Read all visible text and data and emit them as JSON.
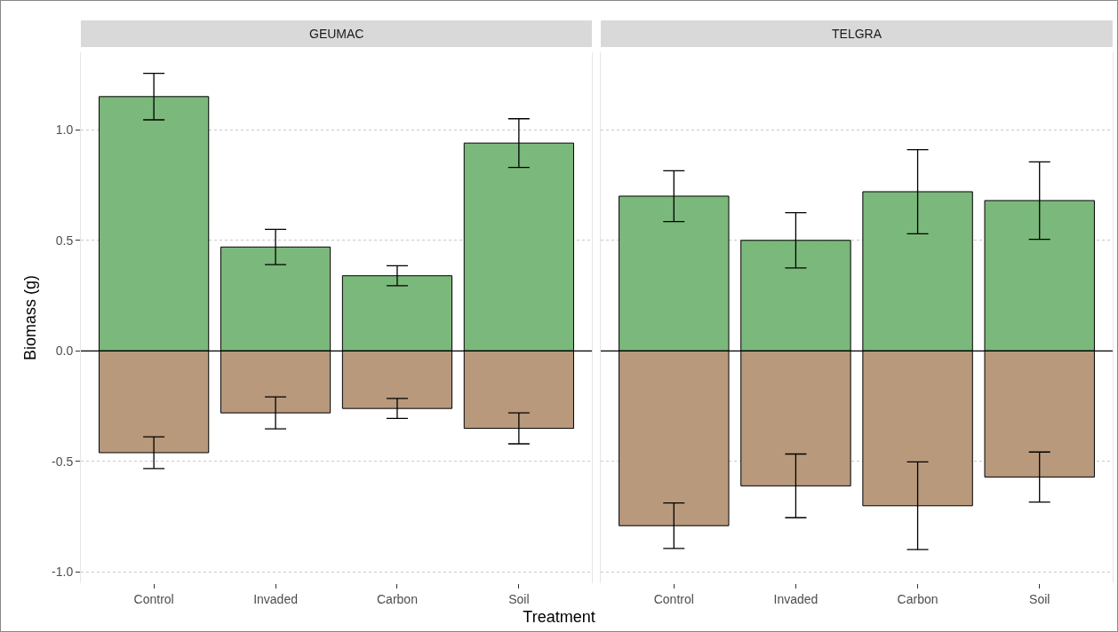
{
  "chart_data": [
    {
      "type": "bar",
      "title": "GEUMAC",
      "ylabel": "Biomass (g)",
      "xlabel": "Treatment",
      "categories": [
        "Control",
        "Invaded",
        "Carbon",
        "Soil"
      ],
      "stacked": true,
      "grid": "y",
      "ylim": [
        -1.05,
        1.35
      ],
      "yticks": [
        {
          "value": -1,
          "label": "-1.0"
        },
        -0.5,
        {
          "value": 0,
          "label": "0.0"
        },
        0.5,
        {
          "value": 1,
          "label": "1.0"
        }
      ],
      "ref_lines": [
        {
          "axis": "y",
          "value": 0,
          "color": "#000000"
        }
      ],
      "series": [
        {
          "color": "#7bb87b",
          "values": [
            1.15,
            0.47,
            0.34,
            0.94
          ],
          "errors": [
            0.105,
            0.08,
            0.045,
            0.11
          ]
        },
        {
          "color": "#b8997c",
          "values": [
            -0.46,
            -0.28,
            -0.26,
            -0.35
          ],
          "errors": [
            0.072,
            0.072,
            0.045,
            0.07
          ]
        }
      ]
    },
    {
      "type": "bar",
      "title": "TELGRA",
      "categories": [
        "Control",
        "Invaded",
        "Carbon",
        "Soil"
      ],
      "stacked": true,
      "grid": "y",
      "tick_labels": "x",
      "ylim": [
        -1.05,
        1.35
      ],
      "yticks": [
        -1,
        -0.5,
        0,
        0.5,
        1
      ],
      "ref_lines": [
        {
          "axis": "y",
          "value": 0,
          "color": "#000000"
        }
      ],
      "series": [
        {
          "color": "#7bb87b",
          "values": [
            0.7,
            0.5,
            0.72,
            0.68
          ],
          "errors": [
            0.115,
            0.125,
            0.19,
            0.175
          ]
        },
        {
          "color": "#b8997c",
          "values": [
            -0.79,
            -0.61,
            -0.7,
            -0.57
          ],
          "errors": [
            0.103,
            0.144,
            0.198,
            0.113
          ]
        }
      ]
    }
  ]
}
